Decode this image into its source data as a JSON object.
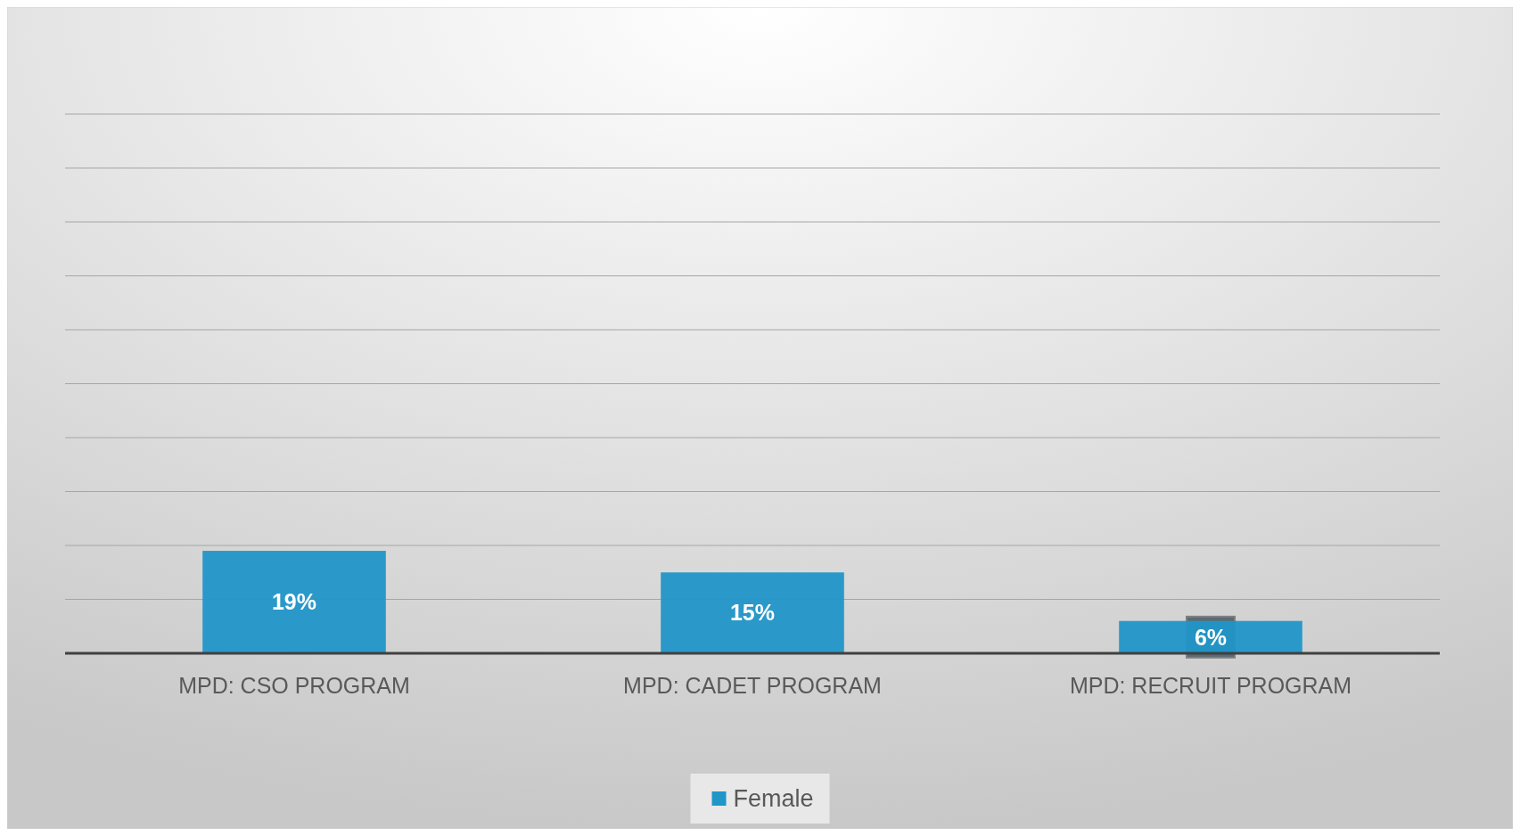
{
  "chart_data": {
    "type": "bar",
    "categories": [
      "MPD: CSO PROGRAM",
      "MPD: CADET PROGRAM",
      "MPD: RECRUIT PROGRAM"
    ],
    "series": [
      {
        "name": "Female",
        "color": "#2196c8",
        "values": [
          19,
          15,
          6
        ],
        "value_labels": [
          "19%",
          "15%",
          "6%"
        ]
      }
    ],
    "ylim": [
      0,
      100
    ],
    "yticks": [
      {
        "value": 0,
        "label": null
      },
      {
        "value": 10,
        "label": null
      },
      {
        "value": 20,
        "label": null
      },
      {
        "value": 30,
        "label": null
      },
      {
        "value": 40,
        "label": null
      },
      {
        "value": 50,
        "label": null
      },
      {
        "value": 60,
        "label": null
      },
      {
        "value": 70,
        "label": null
      },
      {
        "value": 80,
        "label": null
      },
      {
        "value": 90,
        "label": null
      },
      {
        "value": 100,
        "label": null
      }
    ],
    "tick_labels": "x",
    "grid": "y",
    "legend": "bottom"
  }
}
